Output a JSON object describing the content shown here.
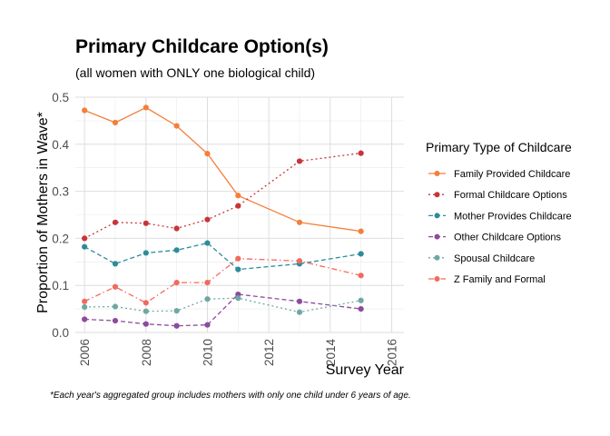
{
  "chart_data": {
    "type": "line",
    "title": "Primary Childcare Option(s)",
    "subtitle": "(all women with ONLY one biological child)",
    "xlabel": "Survey Year",
    "ylabel": "Proportion of Mothers in Wave*",
    "caption": "*Each year's aggregated group includes mothers with only one child under 6 years of age.",
    "xlim": [
      2005.7,
      2016.4
    ],
    "ylim": [
      0,
      0.5
    ],
    "xticks": [
      2006,
      2008,
      2010,
      2012,
      2014,
      2016
    ],
    "xtick_labels": [
      "2006",
      "2008",
      "2010",
      "2012",
      "2014",
      "2016"
    ],
    "yticks": [
      0,
      0.1,
      0.2,
      0.3,
      0.4,
      0.5
    ],
    "ytick_labels": [
      "0.0",
      "0.1",
      "0.2",
      "0.3",
      "0.4",
      "0.5"
    ],
    "grid": true,
    "legend": {
      "title": "Primary Type of Childcare",
      "position": "right"
    },
    "x": [
      2006,
      2007,
      2008,
      2009,
      2010,
      2011,
      2013,
      2015
    ],
    "series": [
      {
        "name": "Family Provided Childcare",
        "color": "#F47F3A",
        "dash": "solid",
        "values": [
          0.472,
          0.446,
          0.478,
          0.439,
          0.38,
          0.291,
          0.234,
          0.215
        ]
      },
      {
        "name": "Formal Childcare Options",
        "color": "#C7353A",
        "dash": "dotted",
        "values": [
          0.2,
          0.234,
          0.232,
          0.221,
          0.24,
          0.269,
          0.364,
          0.381
        ]
      },
      {
        "name": "Mother Provides Childcare",
        "color": "#2E8C9A",
        "dash": "dashed",
        "values": [
          0.182,
          0.146,
          0.169,
          0.175,
          0.19,
          0.134,
          0.146,
          0.167
        ]
      },
      {
        "name": "Other Childcare Options",
        "color": "#8E4A9E",
        "dash": "dashed",
        "values": [
          0.028,
          0.025,
          0.018,
          0.014,
          0.016,
          0.081,
          0.066,
          0.05
        ]
      },
      {
        "name": "Spousal Childcare",
        "color": "#6FA8A3",
        "dash": "dotted",
        "values": [
          0.054,
          0.055,
          0.045,
          0.046,
          0.071,
          0.073,
          0.043,
          0.068
        ]
      },
      {
        "name": "Z Family and Formal",
        "color": "#F26A5E",
        "dash": "dashdot",
        "values": [
          0.066,
          0.097,
          0.063,
          0.106,
          0.106,
          0.157,
          0.152,
          0.121
        ]
      }
    ]
  }
}
